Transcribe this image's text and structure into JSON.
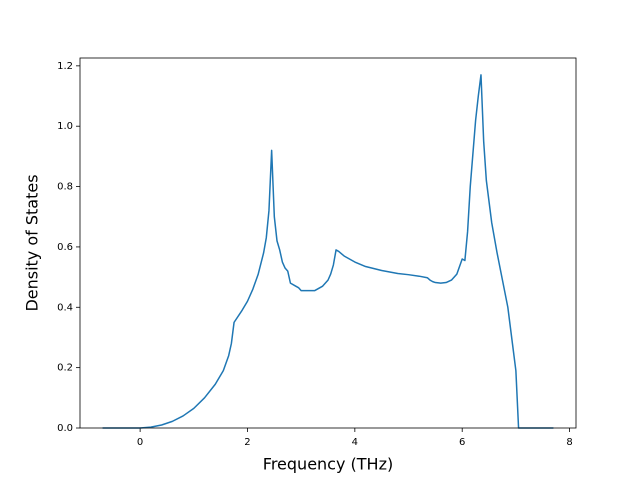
{
  "chart_data": {
    "type": "line",
    "x_label": "Frequency (THz)",
    "y_label": "Density of States",
    "xlim": [
      -1.12,
      8.12
    ],
    "ylim": [
      0,
      1.226
    ],
    "xticks": [
      0,
      2,
      4,
      6,
      8
    ],
    "yticks": [
      {
        "value": 0,
        "label": "0.0"
      },
      0.2,
      0.4,
      0.6,
      0.8,
      {
        "value": 1,
        "label": "1.0"
      },
      1.2
    ],
    "grid": false,
    "series": [
      {
        "color": "#1f77b4",
        "x": [
          -0.7,
          0,
          0.2,
          0.4,
          0.6,
          0.8,
          1.0,
          1.2,
          1.4,
          1.55,
          1.65,
          1.7,
          1.75,
          1.9,
          2.0,
          2.1,
          2.2,
          2.3,
          2.35,
          2.4,
          2.45,
          2.5,
          2.55,
          2.6,
          2.65,
          2.7,
          2.75,
          2.8,
          2.9,
          2.95,
          3.0,
          3.25,
          3.4,
          3.5,
          3.55,
          3.6,
          3.65,
          3.7,
          3.8,
          3.9,
          4.0,
          4.2,
          4.5,
          4.8,
          5.0,
          5.2,
          5.35,
          5.4,
          5.45,
          5.5,
          5.6,
          5.7,
          5.8,
          5.9,
          6.0,
          6.05,
          6.1,
          6.15,
          6.25,
          6.3,
          6.35,
          6.4,
          6.45,
          6.55,
          6.65,
          6.75,
          6.85,
          6.95,
          7.0,
          7.05,
          7.7
        ],
        "values": [
          0,
          0,
          0.003,
          0.01,
          0.022,
          0.04,
          0.065,
          0.1,
          0.145,
          0.19,
          0.24,
          0.28,
          0.35,
          0.39,
          0.42,
          0.46,
          0.51,
          0.58,
          0.63,
          0.72,
          0.92,
          0.7,
          0.62,
          0.59,
          0.55,
          0.53,
          0.52,
          0.48,
          0.47,
          0.465,
          0.455,
          0.455,
          0.47,
          0.49,
          0.51,
          0.54,
          0.59,
          0.585,
          0.57,
          0.56,
          0.55,
          0.535,
          0.522,
          0.512,
          0.508,
          0.503,
          0.498,
          0.49,
          0.485,
          0.482,
          0.48,
          0.482,
          0.49,
          0.51,
          0.56,
          0.555,
          0.65,
          0.8,
          1.02,
          1.1,
          1.17,
          0.95,
          0.82,
          0.68,
          0.58,
          0.49,
          0.4,
          0.26,
          0.19,
          0,
          0
        ]
      }
    ]
  }
}
